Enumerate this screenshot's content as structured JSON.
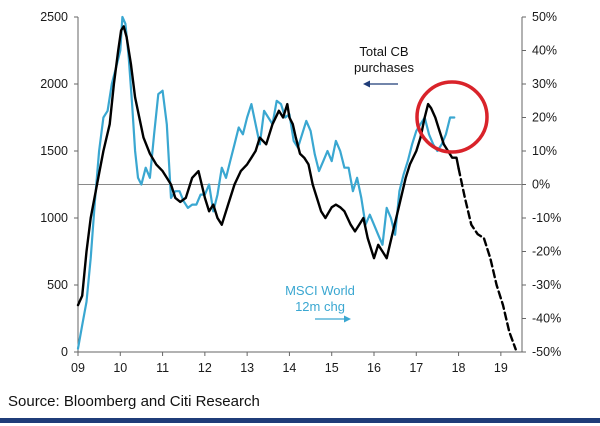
{
  "chart_data": {
    "type": "line",
    "title": "",
    "xlabel": "",
    "ylabel": "",
    "x_ticks": [
      "09",
      "10",
      "11",
      "12",
      "13",
      "14",
      "15",
      "16",
      "17",
      "18",
      "19"
    ],
    "y_left_ticks": [
      "0",
      "500",
      "1000",
      "1500",
      "2000",
      "2500"
    ],
    "y_right_ticks": [
      "-50%",
      "-40%",
      "-30%",
      "-20%",
      "-10%",
      "0%",
      "10%",
      "20%",
      "30%",
      "40%",
      "50%"
    ],
    "ylim_left": [
      0,
      2500
    ],
    "ylim_right": [
      -50,
      50
    ],
    "xlim": [
      2009,
      2019.5
    ],
    "grid": false,
    "series": [
      {
        "name": "Total CB purchases",
        "axis": "left",
        "color": "#000000",
        "x": [
          2009.0,
          2009.1,
          2009.2,
          2009.3,
          2009.45,
          2009.6,
          2009.75,
          2009.85,
          2009.95,
          2010.02,
          2010.08,
          2010.15,
          2010.25,
          2010.35,
          2010.45,
          2010.55,
          2010.7,
          2010.85,
          2011.0,
          2011.1,
          2011.2,
          2011.3,
          2011.42,
          2011.55,
          2011.7,
          2011.85,
          2012.0,
          2012.1,
          2012.2,
          2012.3,
          2012.4,
          2012.55,
          2012.7,
          2012.85,
          2013.0,
          2013.1,
          2013.2,
          2013.3,
          2013.45,
          2013.6,
          2013.75,
          2013.85,
          2013.95,
          2014.0,
          2014.08,
          2014.15,
          2014.25,
          2014.35,
          2014.45,
          2014.55,
          2014.65,
          2014.75,
          2014.85,
          2015.0,
          2015.1,
          2015.2,
          2015.3,
          2015.45,
          2015.55,
          2015.65,
          2015.75,
          2015.85,
          2016.0,
          2016.1,
          2016.2,
          2016.3,
          2016.45,
          2016.6,
          2016.75,
          2016.85,
          2017.0,
          2017.1,
          2017.2,
          2017.28,
          2017.35,
          2017.45,
          2017.55,
          2017.65,
          2017.75,
          2017.85,
          2017.95,
          2018.0
        ],
        "y": [
          350,
          420,
          750,
          1000,
          1250,
          1500,
          1700,
          2000,
          2250,
          2400,
          2430,
          2350,
          2150,
          1900,
          1750,
          1600,
          1480,
          1400,
          1350,
          1300,
          1250,
          1150,
          1120,
          1150,
          1300,
          1350,
          1150,
          1050,
          1100,
          1000,
          950,
          1100,
          1250,
          1350,
          1400,
          1450,
          1500,
          1600,
          1550,
          1700,
          1800,
          1750,
          1850,
          1750,
          1700,
          1600,
          1480,
          1450,
          1400,
          1250,
          1150,
          1050,
          1000,
          1080,
          1100,
          1080,
          1050,
          950,
          900,
          950,
          1000,
          850,
          700,
          800,
          750,
          700,
          900,
          1100,
          1300,
          1400,
          1500,
          1600,
          1750,
          1850,
          1820,
          1750,
          1650,
          1550,
          1500,
          1450,
          1450,
          1370
        ]
      },
      {
        "name": "Total CB purchases (projection)",
        "axis": "left",
        "color": "#000000",
        "dashed": true,
        "x": [
          2018.0,
          2018.15,
          2018.3,
          2018.45,
          2018.6,
          2018.75,
          2018.9,
          2019.05,
          2019.2,
          2019.35
        ],
        "y": [
          1370,
          1150,
          950,
          880,
          850,
          700,
          500,
          350,
          150,
          20
        ]
      },
      {
        "name": "MSCI World 12m chg",
        "axis": "right",
        "color": "#3aa7d1",
        "x": [
          2009.0,
          2009.1,
          2009.2,
          2009.3,
          2009.4,
          2009.5,
          2009.6,
          2009.7,
          2009.8,
          2009.9,
          2010.0,
          2010.05,
          2010.12,
          2010.2,
          2010.28,
          2010.35,
          2010.42,
          2010.5,
          2010.6,
          2010.7,
          2010.8,
          2010.9,
          2011.0,
          2011.1,
          2011.2,
          2011.3,
          2011.4,
          2011.5,
          2011.6,
          2011.7,
          2011.8,
          2011.9,
          2012.0,
          2012.1,
          2012.2,
          2012.3,
          2012.4,
          2012.5,
          2012.6,
          2012.7,
          2012.8,
          2012.9,
          2013.0,
          2013.1,
          2013.2,
          2013.3,
          2013.4,
          2013.5,
          2013.6,
          2013.7,
          2013.8,
          2013.9,
          2014.0,
          2014.1,
          2014.2,
          2014.3,
          2014.4,
          2014.5,
          2014.6,
          2014.7,
          2014.8,
          2014.9,
          2015.0,
          2015.1,
          2015.2,
          2015.3,
          2015.4,
          2015.5,
          2015.6,
          2015.7,
          2015.8,
          2015.9,
          2016.0,
          2016.1,
          2016.2,
          2016.3,
          2016.4,
          2016.5,
          2016.6,
          2016.7,
          2016.8,
          2016.9,
          2017.0,
          2017.1,
          2017.2,
          2017.3,
          2017.4,
          2017.5,
          2017.6,
          2017.7,
          2017.8,
          2017.9
        ],
        "y": [
          -49,
          -42,
          -35,
          -22,
          -5,
          10,
          20,
          22,
          30,
          35,
          40,
          50,
          48,
          38,
          24,
          10,
          2,
          0,
          5,
          2,
          15,
          27,
          28,
          18,
          -4,
          -2,
          -2,
          -5,
          -7,
          -6,
          -6,
          -3,
          -3,
          0,
          -8,
          -3,
          5,
          2,
          7,
          12,
          17,
          15,
          20,
          24,
          18,
          12,
          22,
          20,
          18,
          25,
          24,
          20,
          21,
          13,
          11,
          15,
          19,
          16,
          9,
          4,
          7,
          10,
          7,
          13,
          10,
          5,
          5,
          -2,
          2,
          -4,
          -12,
          -9,
          -12,
          -15,
          -18,
          -7,
          -10,
          -15,
          -2,
          3,
          7,
          12,
          16,
          18,
          20,
          15,
          12,
          10,
          12,
          15,
          20,
          20
        ]
      }
    ],
    "annotations": {
      "cb_label_line1": "Total CB",
      "cb_label_line2": "purchases",
      "msci_label_line1": "MSCI World",
      "msci_label_line2": "12m chg"
    }
  },
  "footer": {
    "source": "Source: Bloomberg and Citi Research"
  },
  "colors": {
    "cb_line": "#000000",
    "msci_line": "#3aa7d1",
    "highlight_circle": "#d9232a",
    "zero_line": "#8a8a8a",
    "footer_rule": "#1f3c78"
  }
}
